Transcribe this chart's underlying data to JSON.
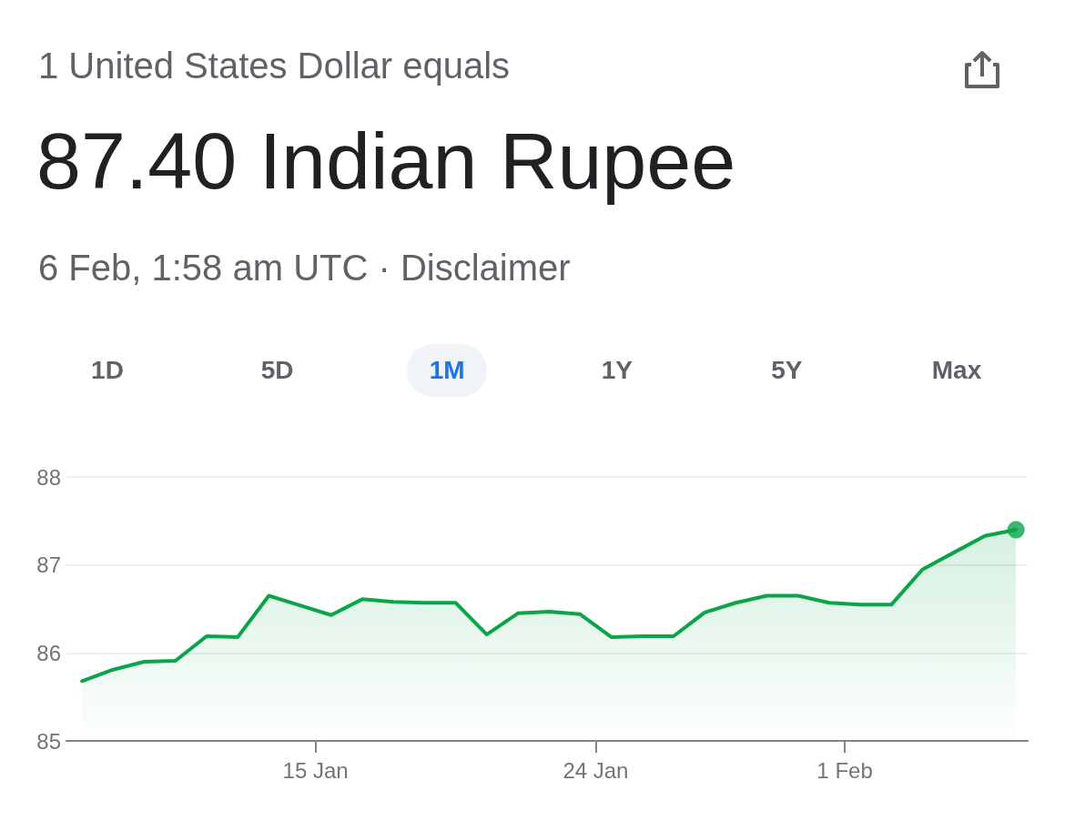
{
  "chart_data": {
    "type": "area",
    "title": "87.40 Indian Rupee",
    "subtitle": "1 United States Dollar equals",
    "annotations": [
      "6 Feb, 1:58 am UTC · Disclaimer",
      "1D",
      "5D",
      "1M",
      "1Y",
      "5Y",
      "Max"
    ],
    "x": [
      "--01-07T12:00",
      "--01-08T12:00",
      "--01-09T12:00",
      "--01-10T12:00",
      "--01-11T12:00",
      "--01-12T12:00",
      "--01-13T12:00",
      "--01-14T12:00",
      "--01-15T12:00",
      "--01-16T12:00",
      "--01-17T12:00",
      "--01-18T12:00",
      "--01-19T12:00",
      "--01-20T12:00",
      "--01-21T12:00",
      "--01-22T12:00",
      "--01-23T12:00",
      "--01-24T12:00",
      "--01-25T12:00",
      "--01-26T12:00",
      "--01-27T12:00",
      "--01-28T12:00",
      "--01-29T12:00",
      "--01-30T12:00",
      "--01-31T12:00",
      "--02-01T12:00",
      "--02-02T12:00",
      "--02-03T12:00",
      "--02-04T12:00",
      "--02-05T12:00",
      "--02-06T12:00"
    ],
    "series": [
      {
        "color": "#0aa548",
        "values": [
          85.68,
          85.81,
          85.9,
          85.91,
          86.19,
          86.18,
          86.65,
          86.54,
          86.43,
          86.61,
          86.58,
          86.57,
          86.57,
          86.21,
          86.45,
          86.47,
          86.44,
          86.18,
          86.19,
          86.19,
          86.46,
          86.57,
          86.65,
          86.65,
          86.57,
          86.55,
          86.55,
          86.95,
          87.14,
          87.33,
          87.4
        ]
      },
      {
        "type": "scatter",
        "marker": "circle",
        "color": "#0aa548",
        "x": [
          "--02-06T12:00"
        ],
        "values": [
          87.4
        ]
      }
    ],
    "xlim": [
      "--01-07T00:00",
      "--02-06T21:00"
    ],
    "xticks": [
      {
        "value": "--01-15",
        "label": "15 Jan"
      },
      {
        "value": "--01-24",
        "label": "24 Jan"
      },
      {
        "value": "--02-01",
        "label": "1 Feb"
      }
    ],
    "ylim": [
      85,
      88
    ],
    "yticks": [
      85,
      86,
      87,
      88
    ],
    "grid": "y",
    "line_style": "solid"
  }
}
